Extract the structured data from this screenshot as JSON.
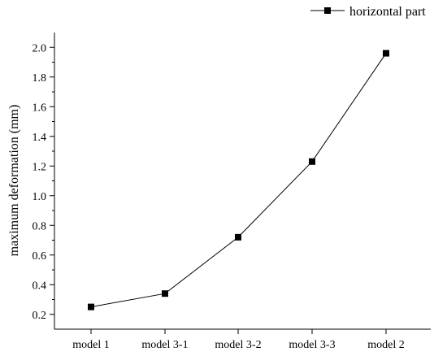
{
  "chart_data": {
    "type": "line",
    "title": "",
    "xlabel": "",
    "ylabel": "maximum deformation (mm)",
    "categories": [
      "model 1",
      "model 3-1",
      "model 3-2",
      "model 3-3",
      "model 2"
    ],
    "series": [
      {
        "name": "horizontal part",
        "values": [
          0.25,
          0.34,
          0.72,
          1.23,
          1.96
        ],
        "marker": "square",
        "color": "#000000"
      }
    ],
    "ylim": [
      0.1,
      2.1
    ],
    "yticks": [
      "0.2",
      "0.4",
      "0.6",
      "0.8",
      "1.0",
      "1.2",
      "1.4",
      "1.6",
      "1.8",
      "2.0"
    ],
    "grid": false,
    "legend_position": "top-right"
  }
}
